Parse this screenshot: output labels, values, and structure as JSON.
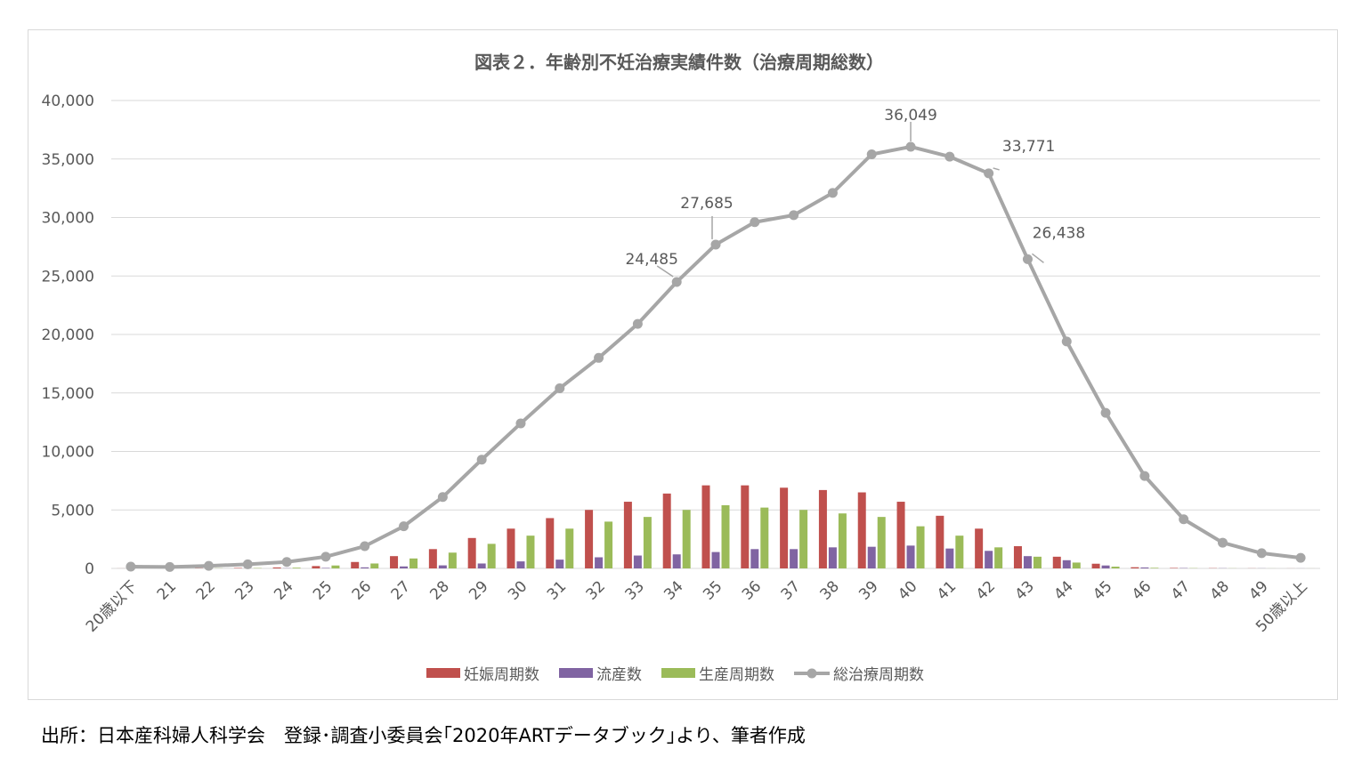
{
  "chart_data": {
    "type": "bar",
    "title": "図表２．年齢別不妊治療実績件数（治療周期総数）",
    "categories": [
      "20歳以下",
      "21",
      "22",
      "23",
      "24",
      "25",
      "26",
      "27",
      "28",
      "29",
      "30",
      "31",
      "32",
      "33",
      "34",
      "35",
      "36",
      "37",
      "38",
      "39",
      "40",
      "41",
      "42",
      "43",
      "44",
      "45",
      "46",
      "47",
      "48",
      "49",
      "50歳以上"
    ],
    "ylim": [
      0,
      40000
    ],
    "yticks": [
      0,
      5000,
      10000,
      15000,
      20000,
      25000,
      30000,
      35000,
      40000
    ],
    "ytick_labels": [
      "0",
      "5,000",
      "10,000",
      "15,000",
      "20,000",
      "25,000",
      "30,000",
      "35,000",
      "40,000"
    ],
    "grid": true,
    "legend_position": "bottom",
    "series": [
      {
        "name": "妊娠周期数",
        "type": "bar",
        "color": "#c0504d",
        "values": [
          5,
          5,
          20,
          40,
          80,
          200,
          550,
          1050,
          1650,
          2600,
          3400,
          4300,
          5000,
          5700,
          6400,
          7100,
          7100,
          6900,
          6700,
          6500,
          5700,
          4500,
          3400,
          1900,
          1000,
          400,
          100,
          40,
          20,
          10,
          5
        ]
      },
      {
        "name": "流産数",
        "type": "bar",
        "color": "#8064a2",
        "values": [
          2,
          2,
          5,
          10,
          20,
          40,
          90,
          170,
          260,
          420,
          600,
          750,
          950,
          1100,
          1200,
          1400,
          1650,
          1650,
          1800,
          1850,
          1950,
          1700,
          1500,
          1050,
          700,
          250,
          80,
          30,
          15,
          10,
          5
        ]
      },
      {
        "name": "生産周期数",
        "type": "bar",
        "color": "#9bbb59",
        "values": [
          3,
          3,
          15,
          30,
          60,
          250,
          420,
          850,
          1350,
          2100,
          2800,
          3400,
          4000,
          4400,
          5000,
          5400,
          5200,
          5000,
          4700,
          4400,
          3600,
          2800,
          1800,
          1000,
          500,
          150,
          50,
          20,
          10,
          5,
          3
        ]
      },
      {
        "name": "総治療周期数",
        "type": "line",
        "color": "#a6a6a6",
        "values": [
          150,
          120,
          220,
          350,
          550,
          1000,
          1900,
          3600,
          6100,
          9300,
          12400,
          15400,
          18000,
          20900,
          24485,
          27685,
          29600,
          30200,
          32100,
          35400,
          36049,
          35200,
          33771,
          26438,
          19400,
          13300,
          7900,
          4200,
          2200,
          1300,
          900
        ]
      }
    ],
    "annotations": [
      {
        "series": "総治療周期数",
        "category": "34",
        "text": "24,485"
      },
      {
        "series": "総治療周期数",
        "category": "35",
        "text": "27,685"
      },
      {
        "series": "総治療周期数",
        "category": "40",
        "text": "36,049"
      },
      {
        "series": "総治療周期数",
        "category": "42",
        "text": "33,771"
      },
      {
        "series": "総治療周期数",
        "category": "43",
        "text": "26,438"
      }
    ]
  },
  "footer": {
    "source": "出所：日本産科婦人科学会　登録･調査小委員会｢2020年ARTデータブック｣より、筆者作成"
  }
}
